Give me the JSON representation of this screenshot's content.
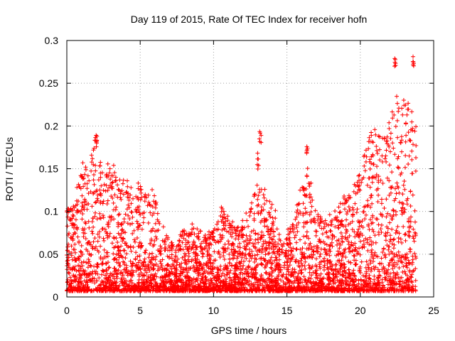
{
  "chart_data": {
    "type": "scatter",
    "title": "Day 119 of 2015, Rate Of TEC Index for receiver hofn",
    "xlabel": "GPS time / hours",
    "ylabel": "ROTI / TECUs",
    "xlim": [
      0,
      25
    ],
    "ylim": [
      0,
      0.3
    ],
    "x_ticks": [
      "0",
      "5",
      "10",
      "15",
      "20",
      "25"
    ],
    "y_ticks": [
      "0",
      "0.05",
      "0.1",
      "0.15",
      "0.2",
      "0.25",
      "0.3"
    ],
    "grid": true,
    "marker": "plus",
    "color": "#ff0000",
    "approx_envelope": {
      "x": [
        0,
        0.5,
        1,
        1.5,
        2,
        2.5,
        3,
        3.5,
        4,
        4.5,
        5,
        5.5,
        6,
        6.5,
        7,
        7.5,
        8,
        8.5,
        9,
        9.5,
        10,
        10.5,
        11,
        11.5,
        12,
        12.5,
        13,
        13.5,
        14,
        14.5,
        15,
        15.5,
        16,
        16.5,
        17,
        17.5,
        18,
        18.5,
        19,
        19.5,
        20,
        20.5,
        21,
        21.5,
        22,
        22.5,
        23,
        23.5,
        23.8
      ],
      "typical_max": [
        0.1,
        0.11,
        0.15,
        0.16,
        0.19,
        0.15,
        0.16,
        0.13,
        0.14,
        0.12,
        0.13,
        0.12,
        0.12,
        0.08,
        0.07,
        0.06,
        0.08,
        0.09,
        0.08,
        0.07,
        0.08,
        0.11,
        0.09,
        0.08,
        0.09,
        0.1,
        0.17,
        0.12,
        0.11,
        0.08,
        0.08,
        0.09,
        0.13,
        0.15,
        0.1,
        0.09,
        0.1,
        0.11,
        0.12,
        0.13,
        0.15,
        0.18,
        0.21,
        0.19,
        0.2,
        0.23,
        0.22,
        0.22,
        0.23
      ],
      "notable_peaks": [
        {
          "x": 2.0,
          "y": 0.2
        },
        {
          "x": 13.2,
          "y": 0.198
        },
        {
          "x": 16.4,
          "y": 0.185
        },
        {
          "x": 22.4,
          "y": 0.289
        },
        {
          "x": 23.6,
          "y": 0.287
        }
      ]
    }
  }
}
